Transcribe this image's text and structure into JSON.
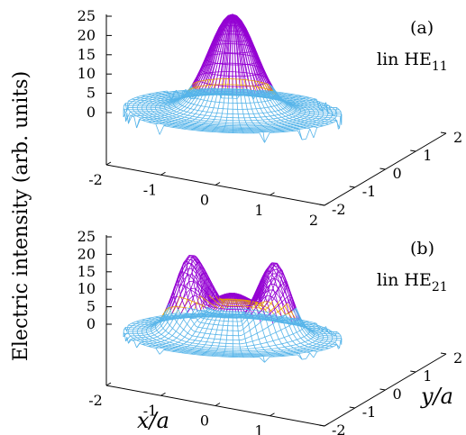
{
  "ylabel": "Electric intensity (arb. units)",
  "colors": {
    "front_mesh": "#56b4e9",
    "back_mesh": "#e69f00",
    "peak_mesh": "#9400d3",
    "axes": "#000000"
  },
  "chart_data": [
    {
      "type": "surface",
      "panel_tag": "(a)",
      "mode": {
        "prefix": "lin HE",
        "subscript": "11"
      },
      "xlabel": "",
      "ylabel": "",
      "xlim": [
        -2,
        2
      ],
      "ylim": [
        -2,
        2
      ],
      "zlim": [
        0,
        25
      ],
      "x_ticks": [
        "-2",
        "-1",
        "0",
        "1",
        "2"
      ],
      "y_ticks": [
        "-2",
        "-1",
        "0",
        "1",
        "2"
      ],
      "z_ticks": [
        "0",
        "5",
        "10",
        "15",
        "20",
        "25"
      ],
      "surface": {
        "shape": "single central peak",
        "peak_intensity": 25,
        "peak_position": [
          0,
          0
        ],
        "width": 0.6,
        "support_radius": 1.9,
        "pedestal": 2.5
      }
    },
    {
      "type": "surface",
      "panel_tag": "(b)",
      "mode": {
        "prefix": "lin HE",
        "subscript": "21"
      },
      "xlabel": "x/a",
      "ylabel": "y/a",
      "xlim": [
        -2,
        2
      ],
      "ylim": [
        -2,
        2
      ],
      "zlim": [
        0,
        25
      ],
      "x_ticks": [
        "-2",
        "-1",
        "0",
        "1",
        "2"
      ],
      "y_ticks": [
        "-2",
        "-1",
        "0",
        "1",
        "2"
      ],
      "z_ticks": [
        "0",
        "5",
        "10",
        "15",
        "20",
        "25"
      ],
      "surface": {
        "shape": "four lobes with central dip",
        "peak_intensity": 23,
        "lobe_radius": 0.75,
        "lobe_count": 4,
        "center_intensity": 13,
        "support_radius": 1.9,
        "pedestal": 1.5
      }
    }
  ]
}
